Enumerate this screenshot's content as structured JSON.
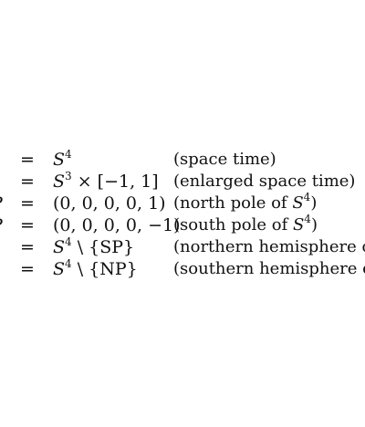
{
  "lines": [
    {
      "lhs": "",
      "eq": "=",
      "rhs_base": "S",
      "rhs_sup": "4",
      "rhs_rest": "",
      "note": "(space time)"
    },
    {
      "lhs": "",
      "eq": "=",
      "rhs_base": "S",
      "rhs_sup": "3",
      "rhs_rest": " × [−1, 1]",
      "note": "(enlarged space time)"
    },
    {
      "lhs": "P",
      "eq": "=",
      "rhs_base": "",
      "rhs_sup": "",
      "rhs_rest": "(0, 0, 0, 0, 1)",
      "note_pre": "(north pole of ",
      "note_base": "S",
      "note_sup": "4",
      "note_post": ")"
    },
    {
      "lhs": "P",
      "eq": "=",
      "rhs_base": "",
      "rhs_sup": "",
      "rhs_rest": "(0, 0, 0, 0, −1)",
      "note_pre": "(south pole of ",
      "note_base": "S",
      "note_sup": "4",
      "note_post": ")"
    },
    {
      "lhs": "",
      "eq": "=",
      "rhs_base": "S",
      "rhs_sup": "4",
      "rhs_rest": " \\ {SP}",
      "note": "(northern hemisphere of S"
    },
    {
      "lhs": "",
      "eq": "=",
      "rhs_base": "S",
      "rhs_sup": "4",
      "rhs_rest": " \\ {NP}",
      "note": "(southern hemisphere of S"
    }
  ]
}
